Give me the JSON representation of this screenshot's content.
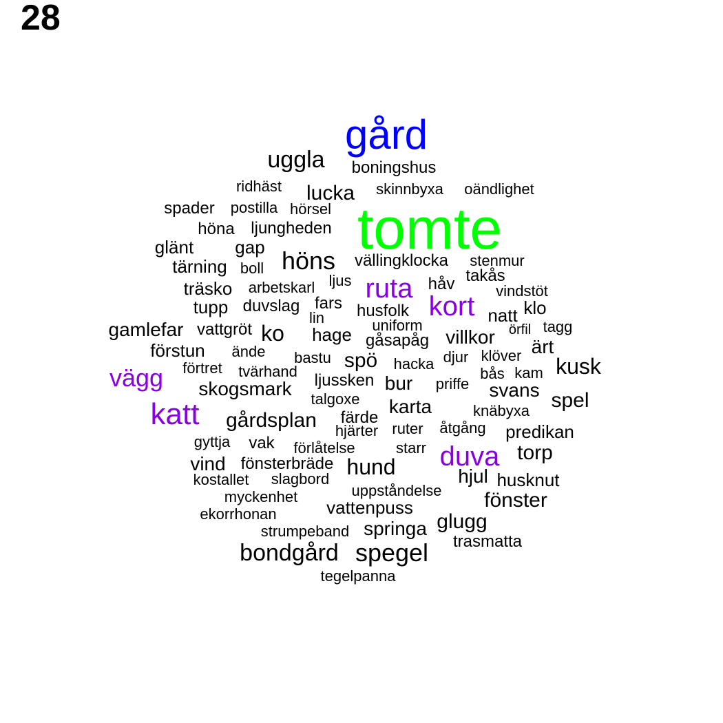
{
  "page_number": "28",
  "colors": {
    "default": "#000000",
    "top": "#00ff00",
    "second": "#0000ff",
    "third": "#8a00e6"
  },
  "words": [
    {
      "text": "tomte",
      "tier": "top"
    },
    {
      "text": "gård",
      "tier": "second"
    },
    {
      "text": "ruta",
      "tier": "third"
    },
    {
      "text": "kort",
      "tier": "third"
    },
    {
      "text": "vägg",
      "tier": "third"
    },
    {
      "text": "katt",
      "tier": "third"
    },
    {
      "text": "duva",
      "tier": "third"
    },
    {
      "text": "uggla"
    },
    {
      "text": "boningshus"
    },
    {
      "text": "ridhäst"
    },
    {
      "text": "lucka"
    },
    {
      "text": "skinnbyxa"
    },
    {
      "text": "oändlighet"
    },
    {
      "text": "spader"
    },
    {
      "text": "postilla"
    },
    {
      "text": "hörsel"
    },
    {
      "text": "höna"
    },
    {
      "text": "ljungheden"
    },
    {
      "text": "glänt"
    },
    {
      "text": "gap"
    },
    {
      "text": "tärning"
    },
    {
      "text": "boll"
    },
    {
      "text": "höns"
    },
    {
      "text": "vällingklocka"
    },
    {
      "text": "stenmur"
    },
    {
      "text": "takås"
    },
    {
      "text": "håv"
    },
    {
      "text": "vindstöt"
    },
    {
      "text": "träsko"
    },
    {
      "text": "arbetskarl"
    },
    {
      "text": "ljus"
    },
    {
      "text": "tupp"
    },
    {
      "text": "duvslag"
    },
    {
      "text": "fars"
    },
    {
      "text": "husfolk"
    },
    {
      "text": "lin"
    },
    {
      "text": "natt"
    },
    {
      "text": "klo"
    },
    {
      "text": "gamlefar"
    },
    {
      "text": "vattgröt"
    },
    {
      "text": "ko"
    },
    {
      "text": "uniform"
    },
    {
      "text": "örfil"
    },
    {
      "text": "tagg"
    },
    {
      "text": "hage"
    },
    {
      "text": "gåsapåg"
    },
    {
      "text": "villkor"
    },
    {
      "text": "förstun"
    },
    {
      "text": "ände"
    },
    {
      "text": "ärt"
    },
    {
      "text": "bastu"
    },
    {
      "text": "spö"
    },
    {
      "text": "djur"
    },
    {
      "text": "klöver"
    },
    {
      "text": "hacka"
    },
    {
      "text": "kusk"
    },
    {
      "text": "förtret"
    },
    {
      "text": "tvärhand"
    },
    {
      "text": "bås"
    },
    {
      "text": "kam"
    },
    {
      "text": "ljussken"
    },
    {
      "text": "bur"
    },
    {
      "text": "priffe"
    },
    {
      "text": "skogsmark"
    },
    {
      "text": "svans"
    },
    {
      "text": "talgoxe"
    },
    {
      "text": "spel"
    },
    {
      "text": "karta"
    },
    {
      "text": "knäbyxa"
    },
    {
      "text": "gårdsplan"
    },
    {
      "text": "färde"
    },
    {
      "text": "hjärter"
    },
    {
      "text": "ruter"
    },
    {
      "text": "åtgång"
    },
    {
      "text": "predikan"
    },
    {
      "text": "gyttja"
    },
    {
      "text": "vak"
    },
    {
      "text": "förlåtelse"
    },
    {
      "text": "starr"
    },
    {
      "text": "torp"
    },
    {
      "text": "vind"
    },
    {
      "text": "fönsterbräde"
    },
    {
      "text": "hund"
    },
    {
      "text": "kostallet"
    },
    {
      "text": "slagbord"
    },
    {
      "text": "hjul"
    },
    {
      "text": "husknut"
    },
    {
      "text": "myckenhet"
    },
    {
      "text": "uppståndelse"
    },
    {
      "text": "fönster"
    },
    {
      "text": "ekorrhonan"
    },
    {
      "text": "vattenpuss"
    },
    {
      "text": "glugg"
    },
    {
      "text": "strumpeband"
    },
    {
      "text": "springa"
    },
    {
      "text": "trasmatta"
    },
    {
      "text": "bondgård"
    },
    {
      "text": "spegel"
    },
    {
      "text": "tegelpanna"
    }
  ]
}
